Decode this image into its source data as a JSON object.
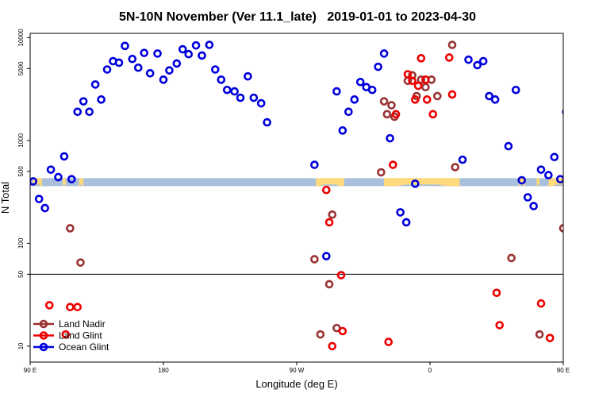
{
  "chart_data": {
    "type": "scatter",
    "title": "5N-10N November (Ver 11.1_late)   2019-01-01 to 2023-04-30",
    "xlabel": "Longitude (deg E)",
    "ylabel": "N Total",
    "y_scale": "log",
    "xlim": [
      90,
      450
    ],
    "ylim": [
      7,
      11000
    ],
    "x_ticks": [
      {
        "value": 90,
        "label": "90 E"
      },
      {
        "value": 180,
        "label": "180"
      },
      {
        "value": 270,
        "label": "90 W"
      },
      {
        "value": 360,
        "label": "0"
      },
      {
        "value": 450,
        "label": "90 E"
      },
      {
        "value": 540,
        "label": "180"
      }
    ],
    "y_ticks": [
      {
        "value": 10,
        "label": "10"
      },
      {
        "value": 50,
        "label": "50"
      },
      {
        "value": 100,
        "label": "100"
      },
      {
        "value": 500,
        "label": "500"
      },
      {
        "value": 1000,
        "label": "1000"
      },
      {
        "value": 5000,
        "label": "5000"
      },
      {
        "value": 10000,
        "label": "10000"
      }
    ],
    "reference_line": 50,
    "legend_position": "bottom-left",
    "colors": {
      "land_nadir": "#993333",
      "land_glint": "#ee0000",
      "ocean_glint": "#0000dd",
      "ocean_band": "#a8c0dc",
      "land_band": "#ffd97a"
    },
    "band": {
      "y_range": [
        360,
        430
      ],
      "land_segments": [
        [
          92,
          98
        ],
        [
          112,
          114
        ],
        [
          123,
          126
        ],
        [
          123,
          125
        ],
        [
          283,
          302
        ],
        [
          329,
          380
        ],
        [
          420,
          424
        ],
        [
          432,
          434
        ],
        [
          440,
          458
        ]
      ]
    },
    "series": [
      {
        "name": "Land Nadir",
        "key": "land_nadir",
        "points": [
          [
            117,
            140
          ],
          [
            124,
            65
          ],
          [
            282,
            70
          ],
          [
            286,
            13
          ],
          [
            292,
            40
          ],
          [
            294,
            190
          ],
          [
            297,
            15
          ],
          [
            327,
            490
          ],
          [
            329,
            2400
          ],
          [
            331,
            1800
          ],
          [
            334,
            2200
          ],
          [
            336,
            1700
          ],
          [
            345,
            3800
          ],
          [
            348,
            4300
          ],
          [
            351,
            2700
          ],
          [
            354,
            3900
          ],
          [
            357,
            3300
          ],
          [
            361,
            3900
          ],
          [
            365,
            2700
          ],
          [
            375,
            8500
          ],
          [
            377,
            550
          ],
          [
            415,
            72
          ],
          [
            434,
            13
          ],
          [
            450,
            140
          ],
          [
            458,
            65
          ]
        ]
      },
      {
        "name": "Land Glint",
        "key": "land_glint",
        "points": [
          [
            103,
            25
          ],
          [
            114,
            13
          ],
          [
            117,
            24
          ],
          [
            122,
            24
          ],
          [
            290,
            330
          ],
          [
            292,
            160
          ],
          [
            294,
            10
          ],
          [
            300,
            49
          ],
          [
            301,
            14
          ],
          [
            332,
            11
          ],
          [
            335,
            580
          ],
          [
            337,
            1800
          ],
          [
            345,
            4400
          ],
          [
            348,
            3800
          ],
          [
            350,
            2500
          ],
          [
            352,
            3400
          ],
          [
            354,
            6300
          ],
          [
            357,
            3900
          ],
          [
            358,
            2500
          ],
          [
            362,
            1800
          ],
          [
            373,
            6400
          ],
          [
            375,
            2800
          ],
          [
            405,
            33
          ],
          [
            407,
            16
          ],
          [
            435,
            26
          ],
          [
            441,
            12
          ],
          [
            456,
            24
          ]
        ]
      },
      {
        "name": "Ocean Glint",
        "key": "ocean_glint",
        "points": [
          [
            92,
            400
          ],
          [
            96,
            270
          ],
          [
            100,
            220
          ],
          [
            104,
            520
          ],
          [
            109,
            440
          ],
          [
            113,
            700
          ],
          [
            118,
            420
          ],
          [
            122,
            1900
          ],
          [
            126,
            2400
          ],
          [
            130,
            1900
          ],
          [
            134,
            3500
          ],
          [
            138,
            2500
          ],
          [
            142,
            4900
          ],
          [
            146,
            5900
          ],
          [
            150,
            5700
          ],
          [
            154,
            8300
          ],
          [
            159,
            6200
          ],
          [
            163,
            5100
          ],
          [
            167,
            7100
          ],
          [
            171,
            4500
          ],
          [
            176,
            7000
          ],
          [
            180,
            3900
          ],
          [
            184,
            4800
          ],
          [
            189,
            5600
          ],
          [
            193,
            7700
          ],
          [
            197,
            6900
          ],
          [
            202,
            8400
          ],
          [
            206,
            6700
          ],
          [
            211,
            8500
          ],
          [
            215,
            4900
          ],
          [
            219,
            3900
          ],
          [
            223,
            3100
          ],
          [
            228,
            3000
          ],
          [
            232,
            2600
          ],
          [
            237,
            4200
          ],
          [
            241,
            2600
          ],
          [
            246,
            2300
          ],
          [
            250,
            1500
          ],
          [
            282,
            580
          ],
          [
            290,
            75
          ],
          [
            297,
            3000
          ],
          [
            301,
            1250
          ],
          [
            305,
            1900
          ],
          [
            309,
            2500
          ],
          [
            313,
            3700
          ],
          [
            317,
            3300
          ],
          [
            321,
            3100
          ],
          [
            325,
            5200
          ],
          [
            329,
            7000
          ],
          [
            333,
            1050
          ],
          [
            340,
            200
          ],
          [
            344,
            160
          ],
          [
            350,
            380
          ],
          [
            382,
            650
          ],
          [
            386,
            6100
          ],
          [
            392,
            5400
          ],
          [
            396,
            5900
          ],
          [
            400,
            2700
          ],
          [
            404,
            2500
          ],
          [
            413,
            880
          ],
          [
            418,
            3100
          ],
          [
            422,
            410
          ],
          [
            426,
            280
          ],
          [
            430,
            230
          ],
          [
            435,
            520
          ],
          [
            440,
            460
          ],
          [
            444,
            690
          ],
          [
            448,
            420
          ],
          [
            452,
            1900
          ],
          [
            456,
            2400
          ],
          [
            461,
            1900
          ],
          [
            465,
            3500
          ],
          [
            469,
            2500
          ],
          [
            474,
            4800
          ],
          [
            478,
            5800
          ],
          [
            483,
            5700
          ],
          [
            487,
            8300
          ],
          [
            491,
            6200
          ],
          [
            495,
            5100
          ]
        ]
      }
    ]
  }
}
